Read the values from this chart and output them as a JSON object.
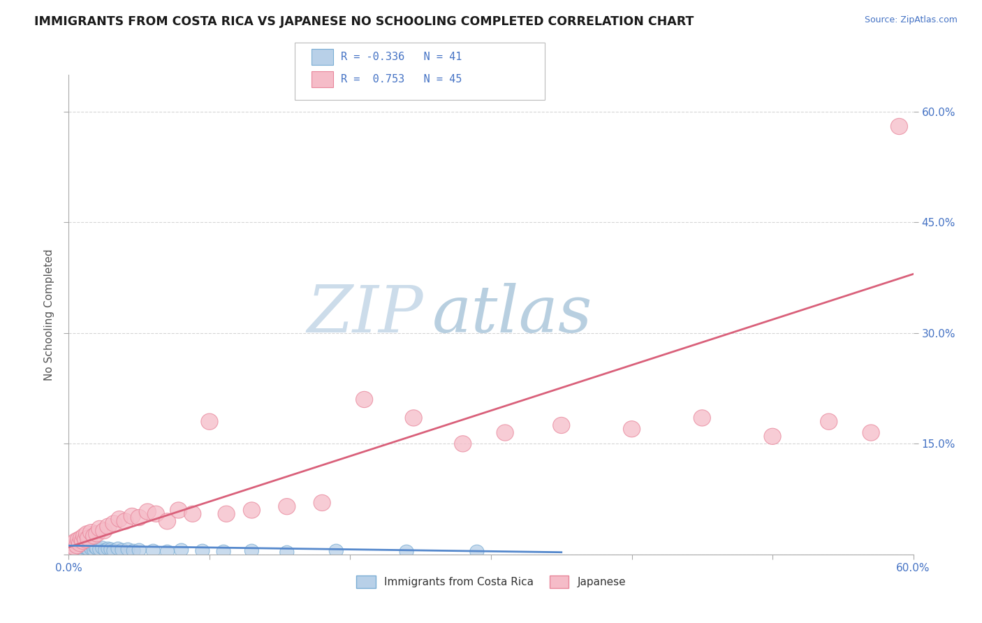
{
  "title": "IMMIGRANTS FROM COSTA RICA VS JAPANESE NO SCHOOLING COMPLETED CORRELATION CHART",
  "source_text": "Source: ZipAtlas.com",
  "ylabel": "No Schooling Completed",
  "xlim": [
    0.0,
    0.6
  ],
  "ylim": [
    0.0,
    0.65
  ],
  "grid_color": "#cccccc",
  "background_color": "#ffffff",
  "watermark_zip": "ZIP",
  "watermark_atlas": "atlas",
  "watermark_color_zip": "#c5d8ea",
  "watermark_color_atlas": "#b8cfe0",
  "blue_color": "#7aadd4",
  "blue_fill": "#b8d0e8",
  "pink_color": "#e8859a",
  "pink_fill": "#f5bcc8",
  "blue_r": -0.336,
  "blue_n": 41,
  "pink_r": 0.753,
  "pink_n": 45,
  "blue_scatter_x": [
    0.002,
    0.003,
    0.004,
    0.005,
    0.005,
    0.006,
    0.007,
    0.008,
    0.009,
    0.01,
    0.011,
    0.012,
    0.013,
    0.014,
    0.015,
    0.016,
    0.017,
    0.018,
    0.019,
    0.02,
    0.022,
    0.024,
    0.026,
    0.028,
    0.03,
    0.032,
    0.035,
    0.038,
    0.042,
    0.046,
    0.05,
    0.06,
    0.07,
    0.08,
    0.095,
    0.11,
    0.13,
    0.155,
    0.19,
    0.24,
    0.29
  ],
  "blue_scatter_y": [
    0.008,
    0.012,
    0.006,
    0.015,
    0.01,
    0.018,
    0.008,
    0.012,
    0.007,
    0.01,
    0.015,
    0.009,
    0.013,
    0.007,
    0.011,
    0.008,
    0.012,
    0.006,
    0.01,
    0.008,
    0.007,
    0.009,
    0.006,
    0.008,
    0.007,
    0.005,
    0.008,
    0.006,
    0.007,
    0.005,
    0.006,
    0.005,
    0.004,
    0.006,
    0.005,
    0.004,
    0.005,
    0.003,
    0.005,
    0.004,
    0.004
  ],
  "pink_scatter_x": [
    0.002,
    0.003,
    0.004,
    0.005,
    0.006,
    0.007,
    0.008,
    0.009,
    0.01,
    0.011,
    0.012,
    0.013,
    0.014,
    0.016,
    0.018,
    0.02,
    0.022,
    0.025,
    0.028,
    0.032,
    0.036,
    0.04,
    0.045,
    0.05,
    0.056,
    0.062,
    0.07,
    0.078,
    0.088,
    0.1,
    0.112,
    0.13,
    0.155,
    0.18,
    0.21,
    0.245,
    0.28,
    0.31,
    0.35,
    0.4,
    0.45,
    0.5,
    0.54,
    0.57,
    0.59
  ],
  "pink_scatter_y": [
    0.008,
    0.015,
    0.01,
    0.018,
    0.012,
    0.02,
    0.015,
    0.022,
    0.018,
    0.025,
    0.02,
    0.028,
    0.022,
    0.03,
    0.025,
    0.028,
    0.035,
    0.032,
    0.038,
    0.042,
    0.048,
    0.045,
    0.052,
    0.05,
    0.058,
    0.055,
    0.045,
    0.06,
    0.055,
    0.18,
    0.055,
    0.06,
    0.065,
    0.07,
    0.21,
    0.185,
    0.15,
    0.165,
    0.175,
    0.17,
    0.185,
    0.16,
    0.18,
    0.165,
    0.58
  ],
  "pink_line_x": [
    0.0,
    0.6
  ],
  "pink_line_y": [
    0.01,
    0.38
  ],
  "blue_line_x": [
    0.0,
    0.35
  ],
  "blue_line_y": [
    0.012,
    0.003
  ]
}
